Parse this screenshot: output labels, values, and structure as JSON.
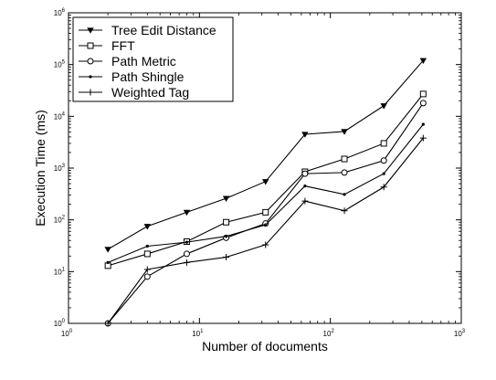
{
  "chart_data": {
    "type": "line",
    "xlabel": "Number of documents",
    "ylabel": "Execution Time (ms)",
    "x_scale": "log",
    "y_scale": "log",
    "xlim": [
      1,
      1000
    ],
    "ylim": [
      1,
      1000000
    ],
    "grid": false,
    "legend_position": "top-left",
    "x": [
      2,
      4,
      8,
      16,
      32,
      64,
      128,
      256,
      512
    ],
    "x_ticks": [
      {
        "base": "10",
        "exp": "0",
        "value": 1
      },
      {
        "base": "10",
        "exp": "1",
        "value": 10
      },
      {
        "base": "10",
        "exp": "2",
        "value": 100
      },
      {
        "base": "10",
        "exp": "3",
        "value": 1000
      }
    ],
    "y_ticks": [
      {
        "base": "10",
        "exp": "0",
        "value": 1
      },
      {
        "base": "10",
        "exp": "1",
        "value": 10
      },
      {
        "base": "10",
        "exp": "2",
        "value": 100
      },
      {
        "base": "10",
        "exp": "3",
        "value": 1000
      },
      {
        "base": "10",
        "exp": "4",
        "value": 10000
      },
      {
        "base": "10",
        "exp": "5",
        "value": 100000
      },
      {
        "base": "10",
        "exp": "6",
        "value": 1000000
      }
    ],
    "series": [
      {
        "name": "Tree Edit Distance",
        "marker": "triangle-down",
        "values": [
          27,
          75,
          140,
          260,
          550,
          4500,
          5100,
          16000,
          120000
        ]
      },
      {
        "name": "FFT",
        "marker": "square",
        "values": [
          13,
          22,
          38,
          90,
          140,
          850,
          1500,
          3000,
          27000
        ]
      },
      {
        "name": "Path Metric",
        "marker": "circle",
        "values": [
          1,
          8,
          22,
          45,
          85,
          780,
          820,
          1400,
          18000
        ]
      },
      {
        "name": "Path Shingle",
        "marker": "dot",
        "values": [
          15,
          31,
          37,
          48,
          80,
          450,
          310,
          780,
          7000
        ]
      },
      {
        "name": "Weighted Tag",
        "marker": "plus",
        "values": [
          1,
          11,
          15,
          19,
          33,
          230,
          150,
          430,
          3800
        ]
      }
    ]
  }
}
